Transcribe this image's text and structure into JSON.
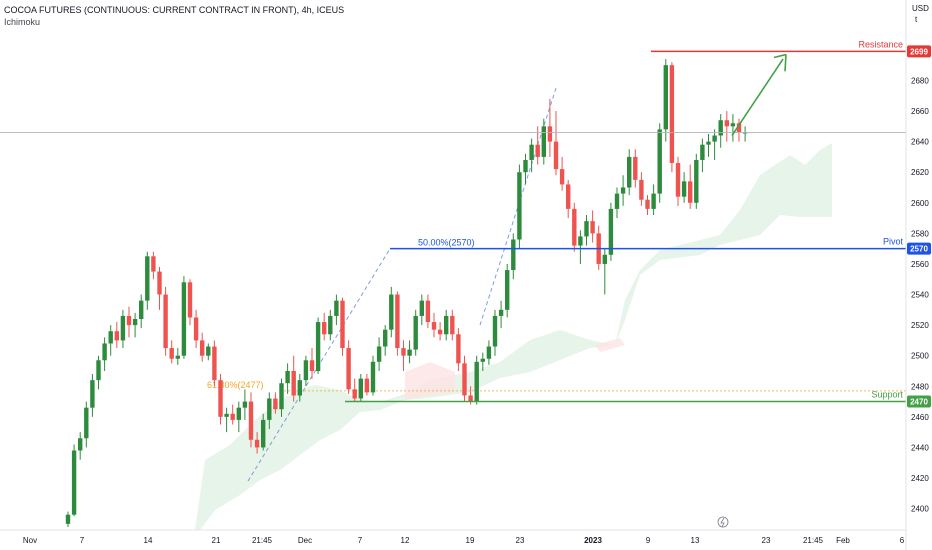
{
  "header": {
    "title": "COCOA FUTURES (CONTINUOUS: CURRENT CONTRACT IN FRONT), 4h, ICEUS",
    "indicator": "Ichimoku"
  },
  "chart_data": {
    "type": "candlestick",
    "currency": "USD",
    "currency_sub": "t",
    "ylim": [
      2386,
      2713
    ],
    "y_ticks": [
      2400,
      2420,
      2440,
      2460,
      2480,
      2500,
      2520,
      2540,
      2560,
      2580,
      2600,
      2620,
      2640,
      2660,
      2680
    ],
    "x_ticks": [
      "Nov",
      "7",
      "14",
      "21",
      "21:45",
      "Dec",
      "7",
      "12",
      "19",
      "23",
      "2023",
      "9",
      "13",
      "23",
      "21:45",
      "Feb",
      "6"
    ],
    "levels": [
      {
        "name": "Resistance",
        "value": 2699,
        "label": "2699",
        "color": "#e53935"
      },
      {
        "name": "Pivot",
        "value": 2570,
        "label": "2570",
        "color": "#1e53e5"
      },
      {
        "name": "Support",
        "value": 2470,
        "label": "2470",
        "color": "#43a047"
      }
    ],
    "fib_labels": [
      {
        "text": "50.00%(2570)",
        "value": 2570,
        "color": "#1e53e5"
      },
      {
        "text": "61.80%(2477)",
        "value": 2477,
        "color": "#f5a623"
      }
    ],
    "last_price": 2646,
    "colors": {
      "up": "#2e8b3d",
      "down": "#ef5350",
      "cloud_green": "#e3f2e6",
      "cloud_red": "#fde4e4"
    },
    "candles": [
      [
        2390,
        2398,
        2388,
        2396
      ],
      [
        2396,
        2442,
        2395,
        2438
      ],
      [
        2438,
        2450,
        2432,
        2446
      ],
      [
        2446,
        2470,
        2440,
        2466
      ],
      [
        2466,
        2488,
        2460,
        2484
      ],
      [
        2484,
        2500,
        2478,
        2497
      ],
      [
        2497,
        2512,
        2490,
        2508
      ],
      [
        2508,
        2520,
        2500,
        2516
      ],
      [
        2516,
        2522,
        2505,
        2510
      ],
      [
        2510,
        2530,
        2505,
        2526
      ],
      [
        2526,
        2532,
        2512,
        2520
      ],
      [
        2520,
        2528,
        2512,
        2524
      ],
      [
        2524,
        2540,
        2518,
        2536
      ],
      [
        2536,
        2568,
        2530,
        2565
      ],
      [
        2565,
        2568,
        2550,
        2555
      ],
      [
        2555,
        2558,
        2530,
        2540
      ],
      [
        2540,
        2545,
        2500,
        2505
      ],
      [
        2505,
        2510,
        2495,
        2498
      ],
      [
        2498,
        2505,
        2494,
        2500
      ],
      [
        2500,
        2552,
        2498,
        2548
      ],
      [
        2548,
        2550,
        2520,
        2525
      ],
      [
        2525,
        2530,
        2505,
        2510
      ],
      [
        2510,
        2515,
        2496,
        2500
      ],
      [
        2500,
        2508,
        2497,
        2506
      ],
      [
        2506,
        2510,
        2480,
        2484
      ],
      [
        2484,
        2488,
        2455,
        2460
      ],
      [
        2460,
        2466,
        2450,
        2462
      ],
      [
        2462,
        2468,
        2455,
        2458
      ],
      [
        2458,
        2470,
        2450,
        2466
      ],
      [
        2466,
        2478,
        2458,
        2470
      ],
      [
        2470,
        2476,
        2440,
        2445
      ],
      [
        2445,
        2450,
        2436,
        2440
      ],
      [
        2440,
        2462,
        2438,
        2458
      ],
      [
        2458,
        2476,
        2452,
        2472
      ],
      [
        2472,
        2476,
        2462,
        2465
      ],
      [
        2465,
        2485,
        2460,
        2482
      ],
      [
        2482,
        2495,
        2475,
        2490
      ],
      [
        2490,
        2500,
        2470,
        2474
      ],
      [
        2474,
        2488,
        2470,
        2484
      ],
      [
        2484,
        2500,
        2480,
        2497
      ],
      [
        2497,
        2505,
        2485,
        2490
      ],
      [
        2490,
        2525,
        2488,
        2522
      ],
      [
        2522,
        2528,
        2510,
        2514
      ],
      [
        2514,
        2530,
        2510,
        2526
      ],
      [
        2526,
        2540,
        2520,
        2536
      ],
      [
        2536,
        2538,
        2500,
        2505
      ],
      [
        2505,
        2510,
        2475,
        2478
      ],
      [
        2478,
        2485,
        2470,
        2472
      ],
      [
        2472,
        2488,
        2470,
        2485
      ],
      [
        2485,
        2488,
        2474,
        2476
      ],
      [
        2476,
        2500,
        2474,
        2496
      ],
      [
        2496,
        2512,
        2490,
        2506
      ],
      [
        2506,
        2520,
        2500,
        2517
      ],
      [
        2517,
        2545,
        2512,
        2540
      ],
      [
        2540,
        2542,
        2500,
        2505
      ],
      [
        2505,
        2510,
        2490,
        2500
      ],
      [
        2500,
        2510,
        2495,
        2504
      ],
      [
        2504,
        2530,
        2500,
        2526
      ],
      [
        2526,
        2540,
        2520,
        2536
      ],
      [
        2536,
        2540,
        2518,
        2522
      ],
      [
        2522,
        2528,
        2512,
        2517
      ],
      [
        2517,
        2522,
        2510,
        2514
      ],
      [
        2514,
        2530,
        2510,
        2526
      ],
      [
        2526,
        2530,
        2510,
        2514
      ],
      [
        2514,
        2518,
        2490,
        2495
      ],
      [
        2495,
        2500,
        2470,
        2474
      ],
      [
        2474,
        2480,
        2468,
        2470
      ],
      [
        2470,
        2500,
        2468,
        2496
      ],
      [
        2496,
        2502,
        2490,
        2498
      ],
      [
        2498,
        2510,
        2494,
        2506
      ],
      [
        2506,
        2530,
        2500,
        2526
      ],
      [
        2526,
        2536,
        2518,
        2530
      ],
      [
        2530,
        2560,
        2525,
        2556
      ],
      [
        2556,
        2580,
        2550,
        2576
      ],
      [
        2576,
        2625,
        2570,
        2620
      ],
      [
        2620,
        2632,
        2612,
        2628
      ],
      [
        2628,
        2642,
        2620,
        2638
      ],
      [
        2638,
        2650,
        2625,
        2630
      ],
      [
        2630,
        2655,
        2625,
        2650
      ],
      [
        2650,
        2668,
        2630,
        2640
      ],
      [
        2640,
        2660,
        2618,
        2622
      ],
      [
        2622,
        2630,
        2608,
        2612
      ],
      [
        2612,
        2615,
        2590,
        2596
      ],
      [
        2596,
        2600,
        2568,
        2572
      ],
      [
        2572,
        2582,
        2560,
        2578
      ],
      [
        2578,
        2592,
        2572,
        2588
      ],
      [
        2588,
        2595,
        2574,
        2580
      ],
      [
        2580,
        2585,
        2556,
        2560
      ],
      [
        2560,
        2570,
        2540,
        2566
      ],
      [
        2566,
        2600,
        2562,
        2596
      ],
      [
        2596,
        2610,
        2590,
        2606
      ],
      [
        2606,
        2618,
        2598,
        2610
      ],
      [
        2610,
        2635,
        2605,
        2630
      ],
      [
        2630,
        2635,
        2610,
        2615
      ],
      [
        2615,
        2620,
        2598,
        2602
      ],
      [
        2602,
        2605,
        2592,
        2596
      ],
      [
        2596,
        2612,
        2592,
        2606
      ],
      [
        2606,
        2652,
        2600,
        2648
      ],
      [
        2648,
        2694,
        2640,
        2690
      ],
      [
        2690,
        2692,
        2620,
        2626
      ],
      [
        2626,
        2630,
        2598,
        2604
      ],
      [
        2604,
        2620,
        2600,
        2614
      ],
      [
        2614,
        2625,
        2596,
        2600
      ],
      [
        2600,
        2632,
        2596,
        2628
      ],
      [
        2628,
        2642,
        2620,
        2638
      ],
      [
        2638,
        2645,
        2630,
        2640
      ],
      [
        2640,
        2648,
        2628,
        2644
      ],
      [
        2644,
        2658,
        2636,
        2654
      ],
      [
        2654,
        2660,
        2640,
        2650
      ],
      [
        2650,
        2658,
        2640,
        2652
      ],
      [
        2652,
        2655,
        2640,
        2646
      ],
      [
        2646,
        2650,
        2640,
        2646
      ]
    ]
  }
}
